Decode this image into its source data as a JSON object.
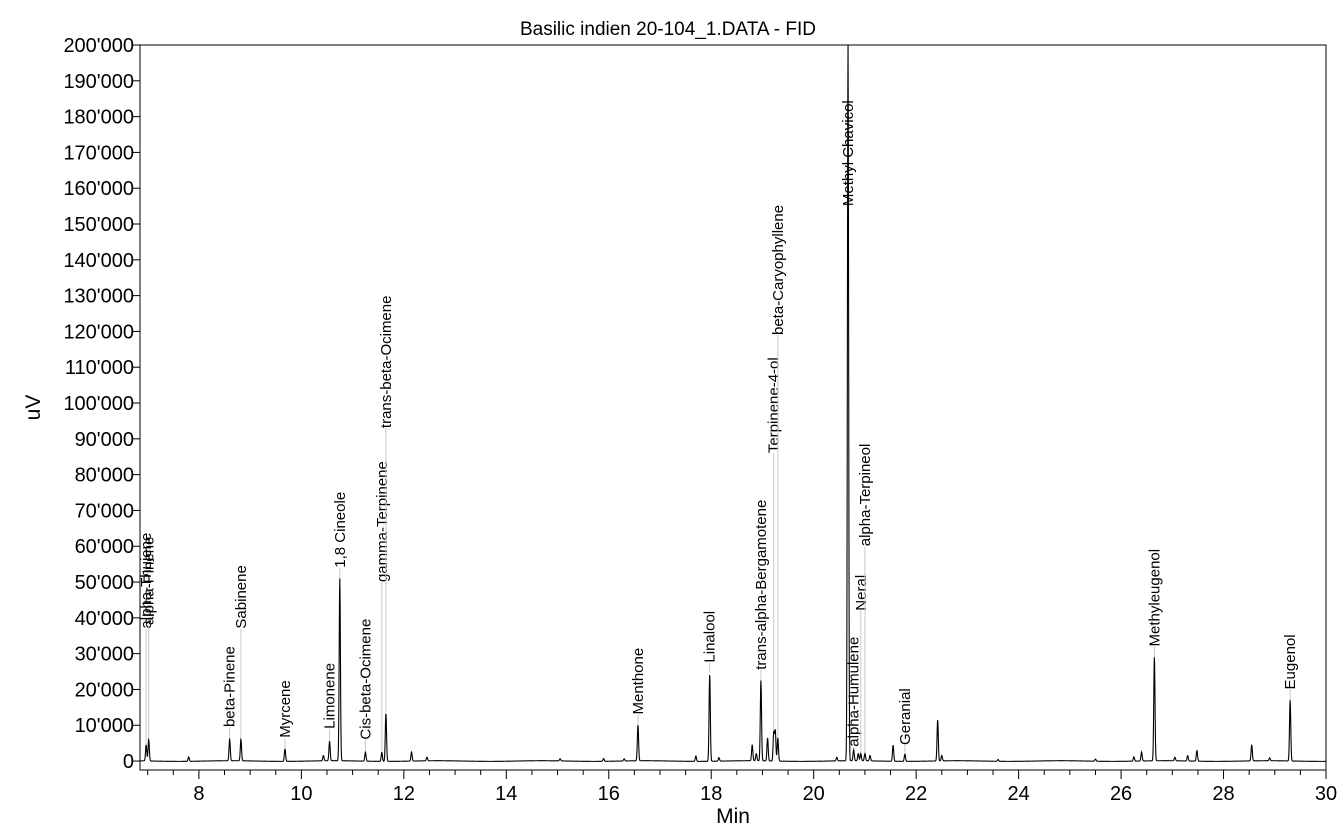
{
  "chart_data": {
    "type": "line",
    "title": "Basilic indien 20-104_1.DATA - FID",
    "xlabel": "Min",
    "ylabel": "uV",
    "xlim": [
      6.85,
      30
    ],
    "ylim": [
      -2500,
      200000
    ],
    "x_ticks": [
      8,
      10,
      12,
      14,
      16,
      18,
      20,
      22,
      24,
      26,
      28,
      30
    ],
    "x_tick_labels": [
      "8",
      "10",
      "12",
      "14",
      "16",
      "18",
      "20",
      "22",
      "24",
      "26",
      "28",
      "30"
    ],
    "y_ticks": [
      0,
      10000,
      20000,
      30000,
      40000,
      50000,
      60000,
      70000,
      80000,
      90000,
      100000,
      110000,
      120000,
      130000,
      140000,
      150000,
      160000,
      170000,
      180000,
      190000,
      200000
    ],
    "y_tick_labels": [
      "0",
      "10'000",
      "20'000",
      "30'000",
      "40'000",
      "50'000",
      "60'000",
      "70'000",
      "80'000",
      "90'000",
      "100'000",
      "110'000",
      "120'000",
      "130'000",
      "140'000",
      "150'000",
      "160'000",
      "170'000",
      "180'000",
      "190'000",
      "200'000"
    ],
    "baseline": 0,
    "grid": false,
    "labeled_peaks": [
      {
        "name": "alpha-Thujene",
        "rt": 6.97,
        "height": 4500,
        "label_y": 37000
      },
      {
        "name": "alpha-Pinene",
        "rt": 7.02,
        "height": 6000,
        "label_y": 38000
      },
      {
        "name": "beta-Pinene",
        "rt": 8.6,
        "height": 6000,
        "label_y": 9500
      },
      {
        "name": "Sabinene",
        "rt": 8.82,
        "height": 3000,
        "label_y": 37000
      },
      {
        "name": "Myrcene",
        "rt": 9.68,
        "height": 3500,
        "label_y": 6500
      },
      {
        "name": "Limonene",
        "rt": 10.55,
        "height": 5500,
        "label_y": 9000
      },
      {
        "name": "1,8 Cineole",
        "rt": 10.75,
        "height": 51000,
        "label_y": 54000
      },
      {
        "name": "Cis-beta-Ocimene",
        "rt": 11.25,
        "height": 2500,
        "label_y": 6000
      },
      {
        "name": "gamma-Terpinene",
        "rt": 11.57,
        "height": 2500,
        "label_y": 50000
      },
      {
        "name": "trans-beta-Ocimene",
        "rt": 11.65,
        "height": 13500,
        "label_y": 93000
      },
      {
        "name": "Menthone",
        "rt": 16.57,
        "height": 10000,
        "label_y": 13000
      },
      {
        "name": "Linalool",
        "rt": 17.97,
        "height": 24500,
        "label_y": 27500
      },
      {
        "name": "trans-alpha-Bergamotene",
        "rt": 18.97,
        "height": 22500,
        "label_y": 25500
      },
      {
        "name": "Terpinene-4-ol",
        "rt": 19.22,
        "height": 8000,
        "label_y": 86000
      },
      {
        "name": "beta-Caryophyllene",
        "rt": 19.3,
        "height": 6500,
        "label_y": 119000
      },
      {
        "name": "Methyl Chavicol",
        "rt": 20.67,
        "height": 200000,
        "label_y": 155000
      },
      {
        "name": "alpha-Humulene",
        "rt": 20.78,
        "height": 3000,
        "label_y": 4000
      },
      {
        "name": "Neral",
        "rt": 20.92,
        "height": 2000,
        "label_y": 42000
      },
      {
        "name": "alpha-Terpineol",
        "rt": 21.0,
        "height": 2000,
        "label_y": 60000
      },
      {
        "name": "Geranial",
        "rt": 21.78,
        "height": 2000,
        "label_y": 4500
      },
      {
        "name": "Methyleugenol",
        "rt": 26.65,
        "height": 29000,
        "label_y": 32000
      },
      {
        "name": "Eugenol",
        "rt": 29.3,
        "height": 17000,
        "label_y": 20000
      }
    ],
    "unlabeled_peaks": [
      {
        "rt": 7.8,
        "height": 1200
      },
      {
        "rt": 8.82,
        "height": 3000
      },
      {
        "rt": 10.43,
        "height": 1500
      },
      {
        "rt": 12.15,
        "height": 2500
      },
      {
        "rt": 12.45,
        "height": 1000
      },
      {
        "rt": 15.05,
        "height": 600
      },
      {
        "rt": 15.9,
        "height": 800
      },
      {
        "rt": 16.3,
        "height": 600
      },
      {
        "rt": 17.7,
        "height": 1500
      },
      {
        "rt": 18.15,
        "height": 1000
      },
      {
        "rt": 18.8,
        "height": 4500
      },
      {
        "rt": 18.88,
        "height": 2000
      },
      {
        "rt": 19.1,
        "height": 6500
      },
      {
        "rt": 19.25,
        "height": 8500
      },
      {
        "rt": 20.45,
        "height": 1000
      },
      {
        "rt": 20.87,
        "height": 2000
      },
      {
        "rt": 21.1,
        "height": 1500
      },
      {
        "rt": 21.55,
        "height": 4500
      },
      {
        "rt": 22.42,
        "height": 11500
      },
      {
        "rt": 22.5,
        "height": 1500
      },
      {
        "rt": 23.6,
        "height": 500
      },
      {
        "rt": 25.5,
        "height": 600
      },
      {
        "rt": 26.25,
        "height": 1200
      },
      {
        "rt": 26.4,
        "height": 2500
      },
      {
        "rt": 27.05,
        "height": 1000
      },
      {
        "rt": 27.3,
        "height": 1500
      },
      {
        "rt": 27.48,
        "height": 3000
      },
      {
        "rt": 28.55,
        "height": 4500
      },
      {
        "rt": 28.9,
        "height": 800
      }
    ]
  }
}
